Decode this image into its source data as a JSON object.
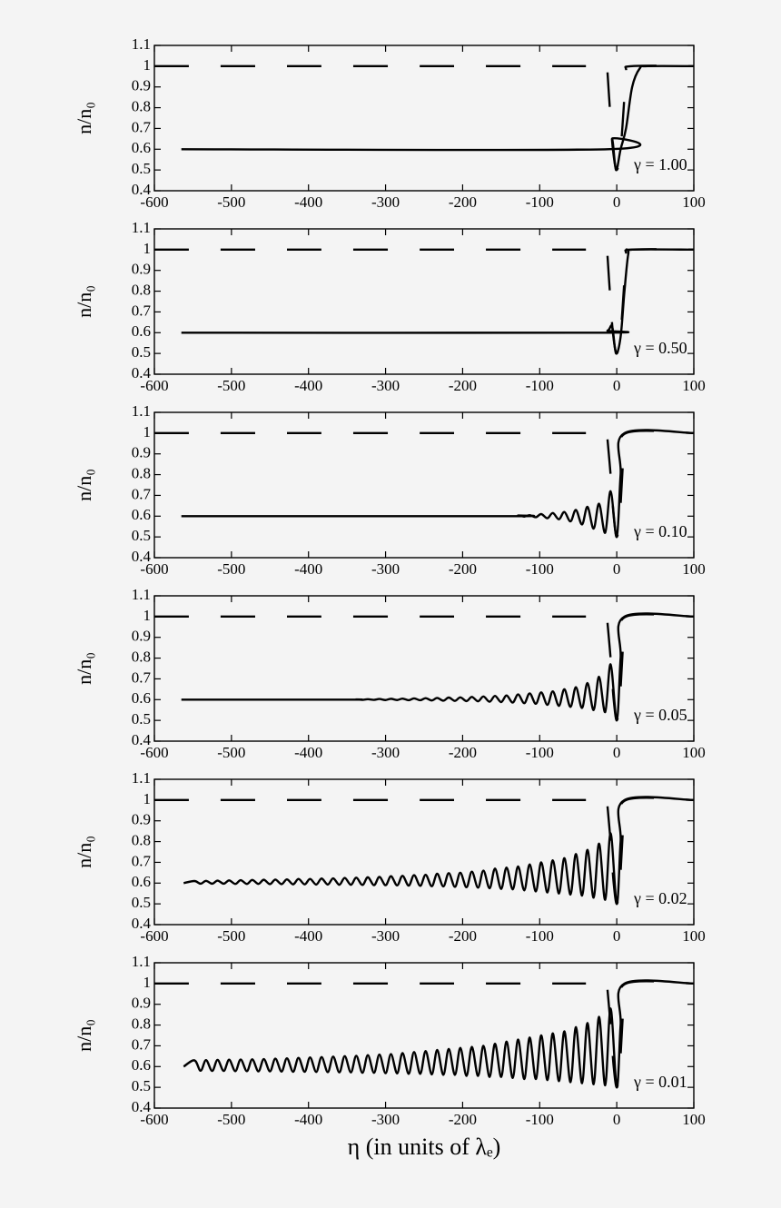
{
  "chart_data": [
    {
      "type": "line",
      "ylabel": "n/n₀",
      "annotation": "γ = 1.00",
      "xlim": [
        -600,
        100
      ],
      "ylim": [
        0.4,
        1.1
      ],
      "xticks": [
        -600,
        -500,
        -400,
        -300,
        -200,
        -100,
        0,
        100
      ],
      "yticks": [
        0.4,
        0.5,
        0.6,
        0.7,
        0.8,
        0.9,
        1,
        1.1
      ],
      "series": [
        {
          "style": "dashed",
          "color": "#000000",
          "x": [
            -600,
            -40,
            -30,
            -12,
            -9,
            -5,
            0,
            5,
            9,
            12,
            20,
            100
          ],
          "values": [
            1,
            1,
            null,
            0.97,
            0.8,
            0.6,
            0.5,
            0.6,
            0.8,
            0.97,
            1,
            1
          ]
        },
        {
          "style": "solid",
          "color": "#000000",
          "x": [
            -565,
            -12,
            -6,
            -1,
            5,
            12,
            20,
            30,
            40,
            100
          ],
          "values": [
            0.6,
            0.6,
            0.65,
            0.5,
            0.6,
            0.7,
            0.9,
            0.99,
            1,
            1
          ]
        }
      ]
    },
    {
      "type": "line",
      "ylabel": "n/n₀",
      "annotation": "γ = 0.50",
      "xlim": [
        -600,
        100
      ],
      "ylim": [
        0.4,
        1.1
      ],
      "xticks": [
        -600,
        -500,
        -400,
        -300,
        -200,
        -100,
        0,
        100
      ],
      "yticks": [
        0.4,
        0.5,
        0.6,
        0.7,
        0.8,
        0.9,
        1,
        1.1
      ],
      "series": [
        {
          "style": "dashed",
          "color": "#000000",
          "x": [
            -600,
            -40,
            -30,
            -12,
            -9,
            -5,
            0,
            5,
            9,
            12,
            20,
            100
          ],
          "values": [
            1,
            1,
            null,
            0.97,
            0.8,
            0.6,
            0.5,
            0.6,
            0.8,
            0.97,
            1,
            1
          ]
        },
        {
          "style": "solid",
          "color": "#000000",
          "x": [
            -565,
            -30,
            -12,
            -6,
            -1,
            5,
            10,
            15,
            20,
            100
          ],
          "values": [
            0.6,
            0.6,
            0.61,
            0.63,
            0.5,
            0.58,
            0.8,
            0.98,
            1,
            1
          ]
        }
      ]
    },
    {
      "type": "line",
      "ylabel": "n/n₀",
      "annotation": "γ = 0.10",
      "xlim": [
        -600,
        100
      ],
      "ylim": [
        0.4,
        1.1
      ],
      "xticks": [
        -600,
        -500,
        -400,
        -300,
        -200,
        -100,
        0,
        100
      ],
      "yticks": [
        0.4,
        0.5,
        0.6,
        0.7,
        0.8,
        0.9,
        1,
        1.1
      ],
      "series": [
        {
          "style": "dashed",
          "color": "#000000",
          "x": [
            -600,
            -40,
            -30,
            -12,
            -8,
            -4,
            0,
            4,
            8,
            12,
            100
          ],
          "values": [
            1,
            1,
            null,
            0.97,
            0.8,
            0.6,
            0.5,
            0.6,
            0.85,
            1,
            1
          ]
        },
        {
          "style": "solid",
          "color": "#000000",
          "x": [
            -565,
            -143,
            -128,
            -120,
            -113,
            -105,
            -98,
            -90,
            -83,
            -75,
            -68,
            -60,
            -53,
            -45,
            -38,
            -30,
            -23,
            -15,
            -8,
            0,
            5,
            10,
            100
          ],
          "values": [
            0.6,
            0.6,
            0.603,
            0.598,
            0.605,
            0.595,
            0.61,
            0.59,
            0.615,
            0.585,
            0.62,
            0.575,
            0.63,
            0.56,
            0.645,
            0.54,
            0.66,
            0.52,
            0.72,
            0.5,
            0.8,
            1,
            1
          ]
        }
      ]
    },
    {
      "type": "line",
      "ylabel": "n/n₀",
      "annotation": "γ = 0.05",
      "xlim": [
        -600,
        100
      ],
      "ylim": [
        0.4,
        1.1
      ],
      "xticks": [
        -600,
        -500,
        -400,
        -300,
        -200,
        -100,
        0,
        100
      ],
      "yticks": [
        0.4,
        0.5,
        0.6,
        0.7,
        0.8,
        0.9,
        1,
        1.1
      ],
      "series": [
        {
          "style": "dashed",
          "color": "#000000",
          "x": [
            -600,
            -40,
            -30,
            -12,
            -8,
            -4,
            0,
            4,
            8,
            12,
            100
          ],
          "values": [
            1,
            1,
            null,
            0.97,
            0.8,
            0.6,
            0.5,
            0.6,
            0.85,
            1,
            1
          ]
        },
        {
          "style": "solid",
          "color": "#000000",
          "x": [
            -565,
            -350,
            -338,
            -330,
            -323,
            -315,
            -308,
            -300,
            -293,
            -285,
            -278,
            -270,
            -263,
            -255,
            -248,
            -240,
            -233,
            -225,
            -218,
            -210,
            -203,
            -195,
            -188,
            -180,
            -173,
            -165,
            -158,
            -150,
            -143,
            -135,
            -128,
            -120,
            -113,
            -105,
            -98,
            -90,
            -83,
            -75,
            -68,
            -60,
            -53,
            -45,
            -38,
            -30,
            -23,
            -15,
            -8,
            0,
            5,
            10,
            100
          ],
          "values": [
            0.6,
            0.6,
            0.601,
            0.599,
            0.602,
            0.599,
            0.603,
            0.598,
            0.604,
            0.598,
            0.605,
            0.597,
            0.606,
            0.597,
            0.607,
            0.596,
            0.608,
            0.595,
            0.61,
            0.594,
            0.611,
            0.593,
            0.613,
            0.592,
            0.615,
            0.59,
            0.618,
            0.588,
            0.62,
            0.586,
            0.625,
            0.583,
            0.63,
            0.58,
            0.635,
            0.575,
            0.64,
            0.57,
            0.65,
            0.565,
            0.66,
            0.56,
            0.68,
            0.55,
            0.71,
            0.54,
            0.77,
            0.5,
            0.8,
            1,
            1
          ]
        }
      ]
    },
    {
      "type": "line",
      "ylabel": "n/n₀",
      "annotation": "γ = 0.02",
      "xlim": [
        -600,
        100
      ],
      "ylim": [
        0.4,
        1.1
      ],
      "xticks": [
        -600,
        -500,
        -400,
        -300,
        -200,
        -100,
        0,
        100
      ],
      "yticks": [
        0.4,
        0.5,
        0.6,
        0.7,
        0.8,
        0.9,
        1,
        1.1
      ],
      "series": [
        {
          "style": "dashed",
          "color": "#000000",
          "x": [
            -600,
            -40,
            -30,
            -12,
            -8,
            -4,
            0,
            4,
            8,
            12,
            100
          ],
          "values": [
            1,
            1,
            null,
            0.97,
            0.8,
            0.6,
            0.5,
            0.6,
            0.85,
            1,
            1
          ]
        },
        {
          "style": "solid",
          "color": "#000000",
          "x": [
            -562,
            -548,
            -540,
            -533,
            -525,
            -518,
            -510,
            -503,
            -495,
            -488,
            -480,
            -473,
            -465,
            -458,
            -450,
            -443,
            -435,
            -428,
            -420,
            -413,
            -405,
            -398,
            -390,
            -383,
            -375,
            -368,
            -360,
            -353,
            -345,
            -338,
            -330,
            -323,
            -315,
            -308,
            -300,
            -293,
            -285,
            -278,
            -270,
            -263,
            -255,
            -248,
            -240,
            -233,
            -225,
            -218,
            -210,
            -203,
            -195,
            -188,
            -180,
            -173,
            -165,
            -158,
            -150,
            -143,
            -135,
            -128,
            -120,
            -113,
            -105,
            -98,
            -90,
            -83,
            -75,
            -68,
            -60,
            -53,
            -45,
            -38,
            -30,
            -23,
            -15,
            -8,
            0,
            5,
            10,
            100
          ],
          "values": [
            0.6,
            0.61,
            0.597,
            0.611,
            0.597,
            0.612,
            0.597,
            0.613,
            0.596,
            0.614,
            0.596,
            0.615,
            0.596,
            0.616,
            0.595,
            0.617,
            0.595,
            0.618,
            0.594,
            0.62,
            0.594,
            0.62,
            0.593,
            0.622,
            0.593,
            0.623,
            0.592,
            0.625,
            0.592,
            0.626,
            0.591,
            0.628,
            0.59,
            0.63,
            0.59,
            0.633,
            0.589,
            0.635,
            0.588,
            0.638,
            0.587,
            0.64,
            0.585,
            0.645,
            0.584,
            0.648,
            0.582,
            0.65,
            0.58,
            0.655,
            0.578,
            0.66,
            0.575,
            0.67,
            0.572,
            0.675,
            0.57,
            0.68,
            0.565,
            0.69,
            0.56,
            0.7,
            0.555,
            0.71,
            0.55,
            0.72,
            0.545,
            0.74,
            0.54,
            0.76,
            0.53,
            0.79,
            0.52,
            0.84,
            0.5,
            0.8,
            1,
            1
          ]
        }
      ]
    },
    {
      "type": "line",
      "ylabel": "n/n₀",
      "annotation": "γ = 0.01",
      "xlabel": "η (in units of λₑ)",
      "xlim": [
        -600,
        100
      ],
      "ylim": [
        0.4,
        1.1
      ],
      "xticks": [
        -600,
        -500,
        -400,
        -300,
        -200,
        -100,
        0,
        100
      ],
      "yticks": [
        0.4,
        0.5,
        0.6,
        0.7,
        0.8,
        0.9,
        1,
        1.1
      ],
      "series": [
        {
          "style": "dashed",
          "color": "#000000",
          "x": [
            -600,
            -40,
            -30,
            -12,
            -8,
            -4,
            0,
            4,
            8,
            12,
            100
          ],
          "values": [
            1,
            1,
            null,
            0.97,
            0.8,
            0.6,
            0.5,
            0.6,
            0.85,
            1,
            1
          ]
        },
        {
          "style": "solid",
          "color": "#000000",
          "x": [
            -562,
            -548,
            -540,
            -533,
            -525,
            -518,
            -510,
            -503,
            -495,
            -488,
            -480,
            -473,
            -465,
            -458,
            -450,
            -443,
            -435,
            -428,
            -420,
            -413,
            -405,
            -398,
            -390,
            -383,
            -375,
            -368,
            -360,
            -353,
            -345,
            -338,
            -330,
            -323,
            -315,
            -308,
            -300,
            -293,
            -285,
            -278,
            -270,
            -263,
            -255,
            -248,
            -240,
            -233,
            -225,
            -218,
            -210,
            -203,
            -195,
            -188,
            -180,
            -173,
            -165,
            -158,
            -150,
            -143,
            -135,
            -128,
            -120,
            -113,
            -105,
            -98,
            -90,
            -83,
            -75,
            -68,
            -60,
            -53,
            -45,
            -38,
            -30,
            -23,
            -15,
            -8,
            0,
            5,
            10,
            100
          ],
          "values": [
            0.6,
            0.63,
            0.58,
            0.631,
            0.579,
            0.632,
            0.579,
            0.633,
            0.578,
            0.634,
            0.578,
            0.635,
            0.577,
            0.636,
            0.577,
            0.638,
            0.576,
            0.64,
            0.575,
            0.642,
            0.575,
            0.644,
            0.574,
            0.646,
            0.573,
            0.648,
            0.572,
            0.65,
            0.572,
            0.652,
            0.57,
            0.655,
            0.57,
            0.658,
            0.568,
            0.66,
            0.567,
            0.665,
            0.565,
            0.67,
            0.565,
            0.675,
            0.562,
            0.68,
            0.56,
            0.685,
            0.56,
            0.69,
            0.555,
            0.695,
            0.555,
            0.7,
            0.55,
            0.71,
            0.55,
            0.72,
            0.545,
            0.73,
            0.54,
            0.74,
            0.54,
            0.75,
            0.535,
            0.76,
            0.53,
            0.77,
            0.525,
            0.79,
            0.52,
            0.81,
            0.515,
            0.84,
            0.51,
            0.88,
            0.5,
            0.8,
            1,
            1
          ]
        }
      ]
    }
  ]
}
